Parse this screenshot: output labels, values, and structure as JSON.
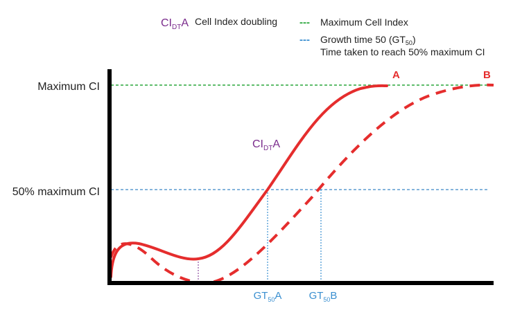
{
  "legend": {
    "cidt_symbol": "CI",
    "cidt_subscript": "DT",
    "cidt_suffix": "A",
    "cidt_text": "Cell Index doubling",
    "max_ci_dash": "---",
    "max_ci_text": "Maximum Cell Index",
    "gt50_dash": "---",
    "gt50_text_prefix": "Growth time 50 (GT",
    "gt50_text_sub": "50",
    "gt50_text_suffix": ")",
    "gt50_desc": "Time taken to reach 50% maximum CI"
  },
  "axis": {
    "max_label": "Maximum CI",
    "half_label": "50% maximum CI"
  },
  "curves": {
    "a_label": "A",
    "b_label": "B"
  },
  "annotation": {
    "symbol": "CI",
    "subscript": "DT",
    "suffix": "A"
  },
  "ticks": {
    "gt50a_prefix": "GT",
    "gt50a_sub": "50",
    "gt50a_suffix": "A",
    "gt50b_prefix": "GT",
    "gt50b_sub": "50",
    "gt50b_suffix": "B"
  },
  "colors": {
    "curve_red": "#e52d2d",
    "max_line_green": "#2aa63c",
    "half_line_blue": "#3b86c6",
    "gt_tick_blue": "#3a8fd0",
    "cidt_purple": "#7a2b8c",
    "axis_black": "#000000",
    "text_dark": "#222222"
  }
}
